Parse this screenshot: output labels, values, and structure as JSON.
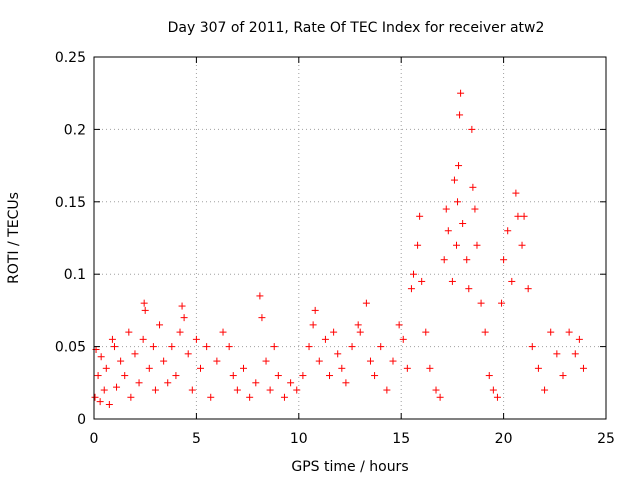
{
  "chart_data": {
    "type": "scatter",
    "title": "Day 307 of 2011, Rate Of TEC Index for receiver atw2",
    "xlabel": "GPS time / hours",
    "ylabel": "ROTI / TECUs",
    "xlim": [
      0,
      25
    ],
    "ylim": [
      0,
      0.25
    ],
    "x_ticks": [
      "0",
      "5",
      "10",
      "15",
      "20",
      "25"
    ],
    "y_ticks": [
      "0",
      "0.05",
      "0.1",
      "0.15",
      "0.2",
      "0.25"
    ],
    "grid": true,
    "marker": "+",
    "series": [
      {
        "color": "#ff0000",
        "points": [
          [
            0.05,
            0.015
          ],
          [
            0.1,
            0.048
          ],
          [
            0.2,
            0.03
          ],
          [
            0.3,
            0.012
          ],
          [
            0.35,
            0.043
          ],
          [
            0.5,
            0.02
          ],
          [
            0.6,
            0.035
          ],
          [
            0.75,
            0.01
          ],
          [
            0.9,
            0.055
          ],
          [
            1.0,
            0.05
          ],
          [
            1.1,
            0.022
          ],
          [
            1.3,
            0.04
          ],
          [
            1.5,
            0.03
          ],
          [
            1.7,
            0.06
          ],
          [
            1.8,
            0.015
          ],
          [
            2.0,
            0.045
          ],
          [
            2.2,
            0.025
          ],
          [
            2.4,
            0.055
          ],
          [
            2.45,
            0.08
          ],
          [
            2.5,
            0.075
          ],
          [
            2.7,
            0.035
          ],
          [
            2.9,
            0.05
          ],
          [
            3.0,
            0.02
          ],
          [
            3.2,
            0.065
          ],
          [
            3.4,
            0.04
          ],
          [
            3.6,
            0.025
          ],
          [
            3.8,
            0.05
          ],
          [
            4.0,
            0.03
          ],
          [
            4.2,
            0.06
          ],
          [
            4.3,
            0.078
          ],
          [
            4.4,
            0.07
          ],
          [
            4.6,
            0.045
          ],
          [
            4.8,
            0.02
          ],
          [
            5.0,
            0.055
          ],
          [
            5.2,
            0.035
          ],
          [
            5.5,
            0.05
          ],
          [
            5.7,
            0.015
          ],
          [
            6.0,
            0.04
          ],
          [
            6.3,
            0.06
          ],
          [
            6.6,
            0.05
          ],
          [
            6.8,
            0.03
          ],
          [
            7.0,
            0.02
          ],
          [
            7.3,
            0.035
          ],
          [
            7.6,
            0.015
          ],
          [
            7.9,
            0.025
          ],
          [
            8.1,
            0.085
          ],
          [
            8.2,
            0.07
          ],
          [
            8.4,
            0.04
          ],
          [
            8.6,
            0.02
          ],
          [
            8.8,
            0.05
          ],
          [
            9.0,
            0.03
          ],
          [
            9.3,
            0.015
          ],
          [
            9.6,
            0.025
          ],
          [
            9.9,
            0.02
          ],
          [
            10.2,
            0.03
          ],
          [
            10.5,
            0.05
          ],
          [
            10.7,
            0.065
          ],
          [
            10.8,
            0.075
          ],
          [
            11.0,
            0.04
          ],
          [
            11.3,
            0.055
          ],
          [
            11.5,
            0.03
          ],
          [
            11.7,
            0.06
          ],
          [
            11.9,
            0.045
          ],
          [
            12.1,
            0.035
          ],
          [
            12.3,
            0.025
          ],
          [
            12.6,
            0.05
          ],
          [
            12.9,
            0.065
          ],
          [
            13.0,
            0.06
          ],
          [
            13.3,
            0.08
          ],
          [
            13.5,
            0.04
          ],
          [
            13.7,
            0.03
          ],
          [
            14.0,
            0.05
          ],
          [
            14.3,
            0.02
          ],
          [
            14.6,
            0.04
          ],
          [
            14.9,
            0.065
          ],
          [
            15.1,
            0.055
          ],
          [
            15.3,
            0.035
          ],
          [
            15.5,
            0.09
          ],
          [
            15.6,
            0.1
          ],
          [
            15.8,
            0.12
          ],
          [
            15.9,
            0.14
          ],
          [
            16.0,
            0.095
          ],
          [
            16.2,
            0.06
          ],
          [
            16.4,
            0.035
          ],
          [
            16.7,
            0.02
          ],
          [
            16.9,
            0.015
          ],
          [
            17.1,
            0.11
          ],
          [
            17.2,
            0.145
          ],
          [
            17.3,
            0.13
          ],
          [
            17.5,
            0.095
          ],
          [
            17.6,
            0.165
          ],
          [
            17.7,
            0.12
          ],
          [
            17.75,
            0.15
          ],
          [
            17.8,
            0.175
          ],
          [
            17.85,
            0.21
          ],
          [
            17.9,
            0.225
          ],
          [
            18.0,
            0.135
          ],
          [
            18.2,
            0.11
          ],
          [
            18.3,
            0.09
          ],
          [
            18.45,
            0.2
          ],
          [
            18.5,
            0.16
          ],
          [
            18.6,
            0.145
          ],
          [
            18.7,
            0.12
          ],
          [
            18.9,
            0.08
          ],
          [
            19.1,
            0.06
          ],
          [
            19.3,
            0.03
          ],
          [
            19.5,
            0.02
          ],
          [
            19.7,
            0.015
          ],
          [
            19.9,
            0.08
          ],
          [
            20.0,
            0.11
          ],
          [
            20.2,
            0.13
          ],
          [
            20.4,
            0.095
          ],
          [
            20.6,
            0.156
          ],
          [
            20.7,
            0.14
          ],
          [
            20.9,
            0.12
          ],
          [
            21.0,
            0.14
          ],
          [
            21.2,
            0.09
          ],
          [
            21.4,
            0.05
          ],
          [
            21.7,
            0.035
          ],
          [
            22.0,
            0.02
          ],
          [
            22.3,
            0.06
          ],
          [
            22.6,
            0.045
          ],
          [
            22.9,
            0.03
          ],
          [
            23.2,
            0.06
          ],
          [
            23.5,
            0.045
          ],
          [
            23.7,
            0.055
          ],
          [
            23.9,
            0.035
          ]
        ]
      }
    ]
  }
}
